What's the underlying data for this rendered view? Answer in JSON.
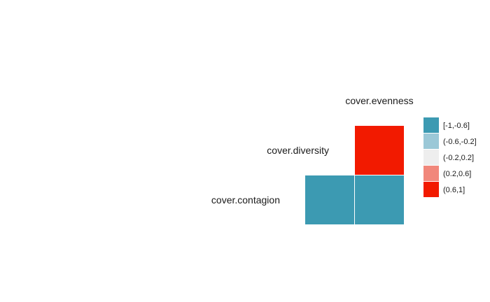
{
  "chart_data": {
    "type": "heatmap",
    "variables": [
      "cover.contagion",
      "cover.diversity",
      "cover.evenness"
    ],
    "cells": [
      {
        "row": "cover.diversity",
        "col": "cover.evenness",
        "bin": "(0.6,1]"
      },
      {
        "row": "cover.contagion",
        "col": "cover.diversity",
        "bin": "[-1,-0.6]"
      },
      {
        "row": "cover.contagion",
        "col": "cover.evenness",
        "bin": "[-1,-0.6]"
      }
    ],
    "legend": {
      "position": "right",
      "entries": [
        {
          "label": "[-1,-0.6]",
          "color": "#3C9AB2"
        },
        {
          "label": "(-0.6,-0.2]",
          "color": "#9BC8D7"
        },
        {
          "label": "(-0.2,0.2]",
          "color": "#EEEEEE"
        },
        {
          "label": "(0.2,0.6]",
          "color": "#F1877B"
        },
        {
          "label": "(0.6,1]",
          "color": "#F21A00"
        }
      ]
    }
  }
}
